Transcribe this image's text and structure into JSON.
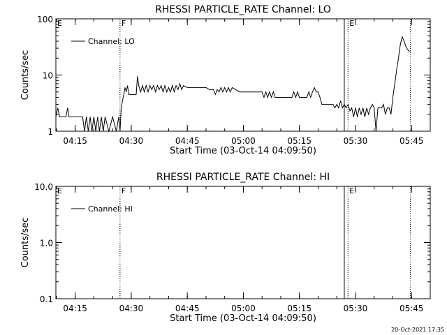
{
  "chart_data": [
    {
      "type": "line",
      "title": "RHESSI PARTICLE_RATE Channel: LO",
      "xlabel": "Start Time (03-Oct-14 04:09:50)",
      "ylabel": "Counts/sec",
      "yscale": "log",
      "xlim": [
        "04:09:50",
        "05:50:00"
      ],
      "ylim": [
        1,
        100
      ],
      "x_ticks": [
        "04:15",
        "04:30",
        "04:45",
        "05:00",
        "05:15",
        "05:30",
        "05:45"
      ],
      "y_ticks": [
        "1",
        "10",
        "100"
      ],
      "legend": {
        "label": "Channel: LO",
        "placement": "top-left"
      },
      "markers": [
        {
          "label": "E",
          "time": "04:09:50",
          "style": "none"
        },
        {
          "label": "F",
          "time": "04:27:00",
          "style": "dotted"
        },
        {
          "label": "",
          "time": "05:27:00",
          "style": "solid"
        },
        {
          "label": "E",
          "time": "05:28:00",
          "style": "dotted"
        },
        {
          "label": "",
          "time": "05:44:40",
          "style": "dotted"
        }
      ],
      "series": [
        {
          "name": "Channel: LO",
          "points": [
            [
              "04:09:50",
              1.8
            ],
            [
              "04:10:20",
              2.6
            ],
            [
              "04:10:50",
              1.8
            ],
            [
              "04:11:30",
              1.8
            ],
            [
              "04:12:30",
              1.8
            ],
            [
              "04:13:00",
              2.6
            ],
            [
              "04:13:20",
              1.8
            ],
            [
              "04:14:30",
              1.8
            ],
            [
              "04:15:30",
              1.8
            ],
            [
              "04:16:30",
              1.8
            ],
            [
              "04:17:00",
              1.8
            ],
            [
              "04:17:30",
              1.0
            ],
            [
              "04:18:00",
              1.8
            ],
            [
              "04:18:30",
              1.0
            ],
            [
              "04:19:00",
              1.8
            ],
            [
              "04:19:30",
              1.0
            ],
            [
              "04:20:00",
              1.8
            ],
            [
              "04:20:30",
              1.0
            ],
            [
              "04:21:00",
              1.8
            ],
            [
              "04:21:30",
              1.0
            ],
            [
              "04:22:00",
              1.8
            ],
            [
              "04:22:30",
              1.0
            ],
            [
              "04:23:00",
              1.8
            ],
            [
              "04:24:00",
              1.0
            ],
            [
              "04:25:00",
              1.8
            ],
            [
              "04:26:00",
              1.0
            ],
            [
              "04:26:40",
              1.8
            ],
            [
              "04:27:00",
              1.0
            ],
            [
              "04:27:20",
              2.6
            ],
            [
              "04:27:40",
              3.5
            ],
            [
              "04:28:00",
              4.5
            ],
            [
              "04:28:20",
              6.0
            ],
            [
              "04:28:40",
              5.0
            ],
            [
              "04:29:00",
              6.5
            ],
            [
              "04:29:20",
              4.5
            ],
            [
              "04:30:00",
              4.5
            ],
            [
              "04:30:40",
              4.5
            ],
            [
              "04:31:20",
              4.5
            ],
            [
              "04:31:40",
              9.5
            ],
            [
              "04:32:00",
              6.5
            ],
            [
              "04:32:30",
              5.0
            ],
            [
              "04:33:00",
              6.5
            ],
            [
              "04:33:30",
              5.0
            ],
            [
              "04:34:00",
              6.5
            ],
            [
              "04:34:30",
              5.0
            ],
            [
              "04:35:00",
              6.5
            ],
            [
              "04:35:30",
              5.5
            ],
            [
              "04:36:00",
              6.5
            ],
            [
              "04:36:30",
              5.0
            ],
            [
              "04:37:00",
              6.5
            ],
            [
              "04:37:30",
              5.5
            ],
            [
              "04:38:00",
              6.5
            ],
            [
              "04:38:30",
              5.0
            ],
            [
              "04:39:00",
              6.5
            ],
            [
              "04:39:30",
              5.0
            ],
            [
              "04:40:00",
              6.0
            ],
            [
              "04:40:30",
              5.0
            ],
            [
              "04:41:00",
              6.5
            ],
            [
              "04:41:30",
              5.0
            ],
            [
              "04:42:00",
              6.5
            ],
            [
              "04:42:30",
              5.5
            ],
            [
              "04:43:00",
              7.0
            ],
            [
              "04:43:30",
              5.5
            ],
            [
              "04:44:00",
              6.5
            ],
            [
              "04:45:00",
              6.0
            ],
            [
              "04:46:00",
              6.0
            ],
            [
              "04:47:00",
              6.0
            ],
            [
              "04:48:00",
              6.0
            ],
            [
              "04:49:00",
              6.0
            ],
            [
              "04:50:00",
              6.0
            ],
            [
              "04:51:00",
              5.5
            ],
            [
              "04:52:00",
              5.5
            ],
            [
              "04:52:30",
              4.5
            ],
            [
              "04:53:00",
              5.5
            ],
            [
              "04:53:30",
              5.0
            ],
            [
              "04:54:00",
              6.0
            ],
            [
              "04:54:30",
              5.0
            ],
            [
              "04:55:00",
              6.0
            ],
            [
              "04:55:30",
              5.0
            ],
            [
              "04:56:00",
              6.0
            ],
            [
              "04:56:30",
              5.0
            ],
            [
              "04:57:00",
              6.0
            ],
            [
              "04:58:00",
              5.5
            ],
            [
              "04:59:00",
              5.0
            ],
            [
              "05:00:00",
              5.0
            ],
            [
              "05:01:00",
              5.0
            ],
            [
              "05:02:00",
              5.0
            ],
            [
              "05:03:00",
              5.0
            ],
            [
              "05:04:00",
              5.0
            ],
            [
              "05:05:00",
              5.0
            ],
            [
              "05:05:30",
              4.0
            ],
            [
              "05:06:00",
              5.0
            ],
            [
              "05:06:30",
              4.0
            ],
            [
              "05:07:00",
              5.0
            ],
            [
              "05:07:30",
              4.0
            ],
            [
              "05:08:00",
              5.0
            ],
            [
              "05:08:30",
              4.0
            ],
            [
              "05:09:00",
              4.0
            ],
            [
              "05:10:00",
              4.0
            ],
            [
              "05:11:00",
              4.0
            ],
            [
              "05:12:00",
              4.0
            ],
            [
              "05:13:00",
              4.0
            ],
            [
              "05:13:30",
              5.0
            ],
            [
              "05:14:00",
              4.0
            ],
            [
              "05:14:30",
              5.0
            ],
            [
              "05:15:00",
              4.0
            ],
            [
              "05:16:00",
              4.0
            ],
            [
              "05:17:00",
              4.0
            ],
            [
              "05:17:30",
              5.0
            ],
            [
              "05:18:00",
              4.0
            ],
            [
              "05:18:30",
              5.0
            ],
            [
              "05:19:00",
              6.0
            ],
            [
              "05:19:30",
              5.0
            ],
            [
              "05:20:00",
              5.0
            ],
            [
              "05:20:30",
              4.0
            ],
            [
              "05:21:00",
              3.0
            ],
            [
              "05:22:00",
              3.0
            ],
            [
              "05:23:00",
              3.0
            ],
            [
              "05:24:00",
              3.0
            ],
            [
              "05:24:30",
              2.6
            ],
            [
              "05:25:00",
              3.0
            ],
            [
              "05:25:30",
              2.6
            ],
            [
              "05:26:00",
              3.5
            ],
            [
              "05:26:30",
              2.6
            ],
            [
              "05:27:00",
              3.0
            ],
            [
              "05:27:30",
              2.6
            ],
            [
              "05:28:00",
              3.0
            ],
            [
              "05:28:30",
              2.3
            ],
            [
              "05:29:00",
              2.6
            ],
            [
              "05:29:30",
              1.8
            ],
            [
              "05:30:00",
              2.6
            ],
            [
              "05:30:30",
              1.8
            ],
            [
              "05:31:00",
              2.6
            ],
            [
              "05:31:30",
              2.0
            ],
            [
              "05:32:00",
              2.6
            ],
            [
              "05:32:30",
              1.8
            ],
            [
              "05:33:00",
              2.6
            ],
            [
              "05:33:30",
              2.0
            ],
            [
              "05:34:00",
              2.6
            ],
            [
              "05:34:30",
              3.0
            ],
            [
              "05:35:00",
              2.6
            ],
            [
              "05:35:30",
              1.0
            ],
            [
              "05:36:00",
              2.6
            ],
            [
              "05:37:00",
              2.6
            ],
            [
              "05:37:30",
              3.0
            ],
            [
              "05:38:00",
              2.0
            ],
            [
              "05:38:30",
              2.6
            ],
            [
              "05:39:00",
              2.6
            ],
            [
              "05:39:30",
              2.0
            ],
            [
              "05:40:00",
              4.0
            ],
            [
              "05:40:30",
              7.0
            ],
            [
              "05:41:00",
              12.0
            ],
            [
              "05:41:30",
              20.0
            ],
            [
              "05:42:00",
              35.0
            ],
            [
              "05:42:30",
              48.0
            ],
            [
              "05:43:00",
              40.0
            ],
            [
              "05:43:30",
              32.0
            ],
            [
              "05:44:00",
              28.0
            ],
            [
              "05:44:30",
              26.0
            ]
          ]
        }
      ]
    },
    {
      "type": "line",
      "title": "RHESSI PARTICLE_RATE Channel: HI",
      "xlabel": "Start Time (03-Oct-14 04:09:50)",
      "ylabel": "Counts/sec",
      "yscale": "log",
      "xlim": [
        "04:09:50",
        "05:50:00"
      ],
      "ylim": [
        0.1,
        10
      ],
      "x_ticks": [
        "04:15",
        "04:30",
        "04:45",
        "05:00",
        "05:15",
        "05:30",
        "05:45"
      ],
      "y_ticks": [
        "0.1",
        "1.0",
        "10.0"
      ],
      "legend": {
        "label": "Channel: HI",
        "placement": "top-left"
      },
      "markers": [
        {
          "label": "E",
          "time": "04:09:50",
          "style": "none"
        },
        {
          "label": "F",
          "time": "04:27:00",
          "style": "dotted"
        },
        {
          "label": "",
          "time": "05:27:00",
          "style": "solid"
        },
        {
          "label": "E",
          "time": "05:28:00",
          "style": "dotted"
        },
        {
          "label": "",
          "time": "05:44:40",
          "style": "dotted"
        }
      ],
      "series": [
        {
          "name": "Channel: HI",
          "points": []
        }
      ]
    }
  ],
  "footer": {
    "timestamp": "20-Oct-2021 17:35"
  }
}
